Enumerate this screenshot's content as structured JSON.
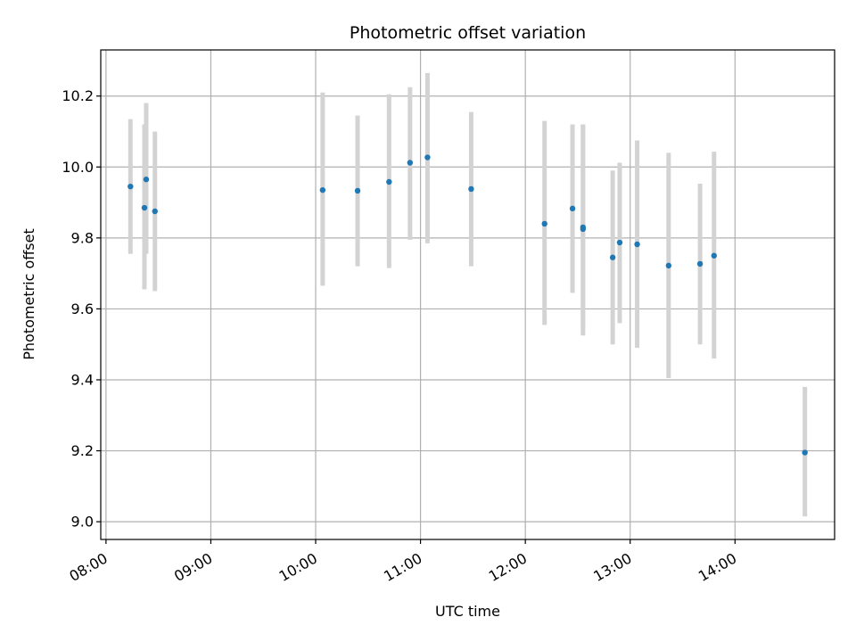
{
  "chart_data": {
    "type": "scatter",
    "title": "Photometric offset variation",
    "xlabel": "UTC time",
    "ylabel": "Photometric offset",
    "xlim": [
      "07:57",
      "14:57"
    ],
    "ylim": [
      8.95,
      10.33
    ],
    "x_ticks": [
      "08:00",
      "09:00",
      "10:00",
      "11:00",
      "12:00",
      "13:00",
      "14:00"
    ],
    "y_ticks": [
      "9.0",
      "9.2",
      "9.4",
      "9.6",
      "9.8",
      "10.0",
      "10.2"
    ],
    "grid": true,
    "colors": {
      "points": "#1f77b4",
      "errorbars": "#d3d3d3",
      "grid": "#b0b0b0"
    },
    "points": [
      {
        "x": "08:14",
        "y": 9.945,
        "ylow": 9.755,
        "yhigh": 10.135
      },
      {
        "x": "08:22",
        "y": 9.885,
        "ylow": 9.655,
        "yhigh": 10.12
      },
      {
        "x": "08:23",
        "y": 9.965,
        "ylow": 9.755,
        "yhigh": 10.18
      },
      {
        "x": "08:28",
        "y": 9.875,
        "ylow": 9.65,
        "yhigh": 10.1
      },
      {
        "x": "10:04",
        "y": 9.935,
        "ylow": 9.665,
        "yhigh": 10.21
      },
      {
        "x": "10:24",
        "y": 9.933,
        "ylow": 9.72,
        "yhigh": 10.145
      },
      {
        "x": "10:42",
        "y": 9.958,
        "ylow": 9.715,
        "yhigh": 10.205
      },
      {
        "x": "10:54",
        "y": 10.012,
        "ylow": 9.795,
        "yhigh": 10.225
      },
      {
        "x": "11:04",
        "y": 10.027,
        "ylow": 9.785,
        "yhigh": 10.265
      },
      {
        "x": "11:29",
        "y": 9.938,
        "ylow": 9.72,
        "yhigh": 10.155
      },
      {
        "x": "12:11",
        "y": 9.84,
        "ylow": 9.555,
        "yhigh": 10.13
      },
      {
        "x": "12:27",
        "y": 9.883,
        "ylow": 9.645,
        "yhigh": 10.12
      },
      {
        "x": "12:33",
        "y": 9.825,
        "ylow": 9.525,
        "yhigh": 10.12
      },
      {
        "x": "12:33",
        "y": 9.83,
        "ylow": 9.545,
        "yhigh": 10.12
      },
      {
        "x": "12:50",
        "y": 9.745,
        "ylow": 9.5,
        "yhigh": 9.99
      },
      {
        "x": "12:54",
        "y": 9.787,
        "ylow": 9.56,
        "yhigh": 10.012
      },
      {
        "x": "13:04",
        "y": 9.782,
        "ylow": 9.49,
        "yhigh": 10.075
      },
      {
        "x": "13:22",
        "y": 9.722,
        "ylow": 9.405,
        "yhigh": 10.04
      },
      {
        "x": "13:40",
        "y": 9.727,
        "ylow": 9.5,
        "yhigh": 9.953
      },
      {
        "x": "13:48",
        "y": 9.75,
        "ylow": 9.46,
        "yhigh": 10.043
      },
      {
        "x": "14:40",
        "y": 9.195,
        "ylow": 9.015,
        "yhigh": 9.38
      }
    ]
  }
}
